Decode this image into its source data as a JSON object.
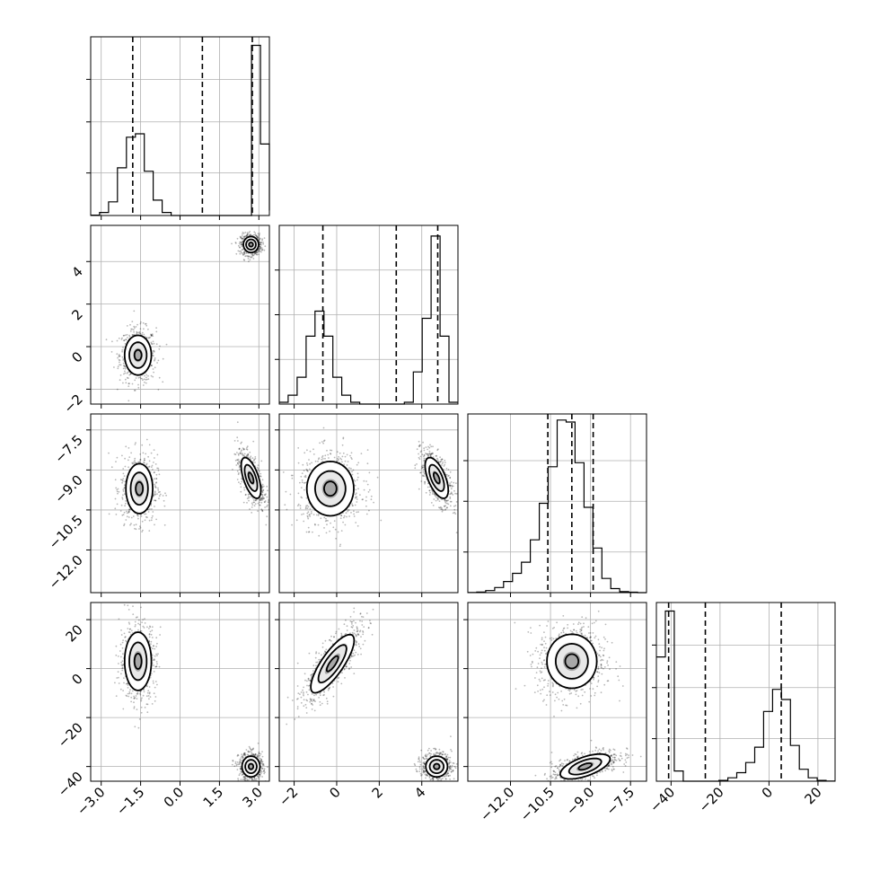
{
  "chart_data": {
    "type": "corner",
    "title": "",
    "parameters": [
      {
        "index": 0,
        "ticks": [
          -3.0,
          -1.5,
          0.0,
          1.5,
          3.0
        ],
        "tick_labels": [
          "−3.0",
          "−1.5",
          "0.0",
          "1.5",
          "3.0"
        ],
        "range": [
          -3.4,
          3.4
        ],
        "quantiles": [
          -1.8,
          0.85,
          2.75
        ]
      },
      {
        "index": 1,
        "ticks": [
          -2,
          0,
          2,
          4
        ],
        "tick_labels": [
          "−2",
          "0",
          "2",
          "4"
        ],
        "range": [
          -2.7,
          5.7
        ],
        "quantiles": [
          -0.65,
          2.8,
          4.75
        ]
      },
      {
        "index": 2,
        "ticks": [
          -12.0,
          -10.5,
          -9.0,
          -7.5
        ],
        "tick_labels": [
          "−12.0",
          "−10.5",
          "−9.0",
          "−7.5"
        ],
        "range": [
          -13.6,
          -6.9
        ],
        "quantiles": [
          -10.6,
          -9.7,
          -8.9
        ]
      },
      {
        "index": 3,
        "ticks": [
          -40,
          -20,
          0,
          20
        ],
        "tick_labels": [
          "−40",
          "−20",
          "0",
          "20"
        ],
        "range": [
          -46,
          27
        ],
        "quantiles": [
          -41,
          -26,
          5
        ]
      }
    ],
    "histograms": [
      {
        "param": 0,
        "edges": [
          -3.4,
          -3.06,
          -2.72,
          -2.38,
          -2.04,
          -1.7,
          -1.36,
          -1.02,
          -0.68,
          -0.34,
          0.0,
          0.34,
          0.68,
          1.02,
          1.36,
          1.7,
          2.04,
          2.38,
          2.72,
          3.06,
          3.4
        ],
        "counts": [
          2,
          18,
          80,
          280,
          460,
          480,
          260,
          90,
          18,
          0,
          0,
          0,
          0,
          0,
          0,
          0,
          0,
          0,
          1000,
          420,
          30
        ],
        "ymax": 1050
      },
      {
        "param": 1,
        "edges": [
          -2.7,
          -2.28,
          -1.86,
          -1.44,
          -1.02,
          -0.6,
          -0.18,
          0.24,
          0.66,
          1.08,
          1.5,
          1.92,
          2.34,
          2.76,
          3.18,
          3.6,
          4.02,
          4.44,
          4.86,
          5.28,
          5.7
        ],
        "counts": [
          10,
          50,
          150,
          380,
          520,
          380,
          150,
          50,
          10,
          0,
          0,
          0,
          0,
          0,
          10,
          180,
          480,
          940,
          380,
          10
        ],
        "ymax": 1000
      },
      {
        "param": 2,
        "edges": [
          -13.6,
          -13.265,
          -12.93,
          -12.595,
          -12.26,
          -11.925,
          -11.59,
          -11.255,
          -10.92,
          -10.585,
          -10.25,
          -9.915,
          -9.58,
          -9.245,
          -8.91,
          -8.575,
          -8.24,
          -7.905,
          -7.57,
          -7.235,
          -6.9
        ],
        "counts": [
          1,
          3,
          10,
          25,
          55,
          95,
          150,
          260,
          440,
          620,
          850,
          840,
          640,
          420,
          220,
          70,
          20,
          5,
          2,
          0
        ],
        "ymax": 880
      },
      {
        "param": 3,
        "edges": [
          -46,
          -42.35,
          -38.7,
          -35.05,
          -31.4,
          -27.75,
          -24.1,
          -20.45,
          -16.8,
          -13.15,
          -9.5,
          -5.85,
          -2.2,
          1.45,
          5.1,
          8.75,
          12.4,
          16.05,
          19.7,
          23.35,
          27
        ],
        "counts": [
          730,
          1000,
          60,
          0,
          0,
          0,
          0,
          5,
          20,
          50,
          110,
          200,
          410,
          540,
          480,
          210,
          70,
          20,
          5,
          1
        ],
        "ymax": 1050
      }
    ],
    "pairs": [
      {
        "x": 0,
        "y": 1,
        "clusters": [
          {
            "cx": -1.6,
            "cy": -0.4,
            "sx": 0.3,
            "sy": 0.55,
            "rho": 0.0,
            "n": 600
          },
          {
            "cx": 2.7,
            "cy": 4.8,
            "sx": 0.17,
            "sy": 0.22,
            "rho": 0.0,
            "n": 600
          }
        ]
      },
      {
        "x": 0,
        "y": 2,
        "clusters": [
          {
            "cx": -1.55,
            "cy": -9.7,
            "sx": 0.3,
            "sy": 0.55,
            "rho": 0.0,
            "n": 650
          },
          {
            "cx": 2.7,
            "cy": -9.3,
            "sx": 0.22,
            "sy": 0.45,
            "rho": -0.6,
            "n": 650
          }
        ]
      },
      {
        "x": 1,
        "y": 2,
        "clusters": [
          {
            "cx": -0.3,
            "cy": -9.7,
            "sx": 0.65,
            "sy": 0.6,
            "rho": 0.0,
            "n": 700
          },
          {
            "cx": 4.7,
            "cy": -9.3,
            "sx": 0.32,
            "sy": 0.45,
            "rho": -0.6,
            "n": 650
          }
        ]
      },
      {
        "x": 0,
        "y": 3,
        "clusters": [
          {
            "cx": -1.6,
            "cy": 3,
            "sx": 0.3,
            "sy": 7,
            "rho": 0.0,
            "n": 650
          },
          {
            "cx": 2.7,
            "cy": -40,
            "sx": 0.2,
            "sy": 2.5,
            "rho": 0.0,
            "n": 650
          }
        ]
      },
      {
        "x": 1,
        "y": 3,
        "clusters": [
          {
            "cx": -0.2,
            "cy": 2,
            "sx": 0.6,
            "sy": 7,
            "rho": 0.8,
            "n": 700
          },
          {
            "cx": 4.7,
            "cy": -40,
            "sx": 0.3,
            "sy": 2.5,
            "rho": 0.0,
            "n": 650
          }
        ]
      },
      {
        "x": 2,
        "y": 3,
        "clusters": [
          {
            "cx": -9.7,
            "cy": 3,
            "sx": 0.55,
            "sy": 6.5,
            "rho": 0.0,
            "n": 800
          },
          {
            "cx": -9.2,
            "cy": -40,
            "sx": 0.55,
            "sy": 3,
            "rho": 0.6,
            "n": 650
          }
        ]
      }
    ],
    "grid": true,
    "legend": "none"
  }
}
